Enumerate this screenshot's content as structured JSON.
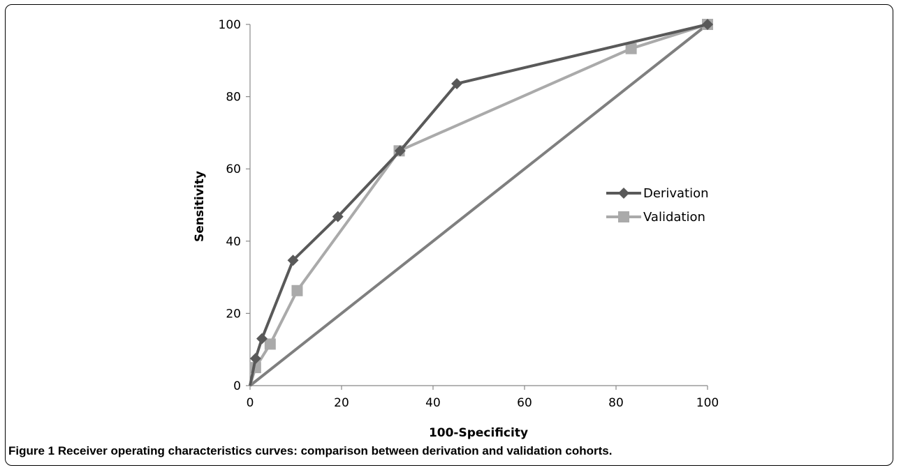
{
  "caption": {
    "label": "Figure 1",
    "text": "Receiver operating characteristics curves: comparison between derivation and validation cohorts."
  },
  "chart_data": {
    "type": "line",
    "title": "",
    "xlabel": "100-Specificity",
    "ylabel": "Sensitivity",
    "xlim": [
      0,
      100
    ],
    "ylim": [
      0,
      100
    ],
    "x_ticks": [
      0,
      20,
      40,
      60,
      80,
      100
    ],
    "y_ticks": [
      0,
      20,
      40,
      60,
      80,
      100
    ],
    "grid": false,
    "legend_position": "right",
    "series": [
      {
        "name": "Derivation",
        "marker": "diamond",
        "color": "#595959",
        "points": [
          [
            0,
            0
          ],
          [
            1.2,
            7.5
          ],
          [
            2.6,
            13
          ],
          [
            9.4,
            34.7
          ],
          [
            19.2,
            46.8
          ],
          [
            32.8,
            65
          ],
          [
            45.2,
            83.6
          ],
          [
            100,
            100
          ]
        ]
      },
      {
        "name": "Validation",
        "marker": "square",
        "color": "#aaaaaa",
        "points": [
          [
            0,
            0
          ],
          [
            1.2,
            5
          ],
          [
            4.4,
            11.5
          ],
          [
            10.3,
            26.3
          ],
          [
            32.6,
            65
          ],
          [
            83.3,
            93.3
          ],
          [
            100,
            100
          ]
        ]
      },
      {
        "name": "",
        "marker": "none",
        "color": "#7f7f7f",
        "points": [
          [
            0,
            0
          ],
          [
            100,
            100
          ]
        ]
      }
    ]
  }
}
